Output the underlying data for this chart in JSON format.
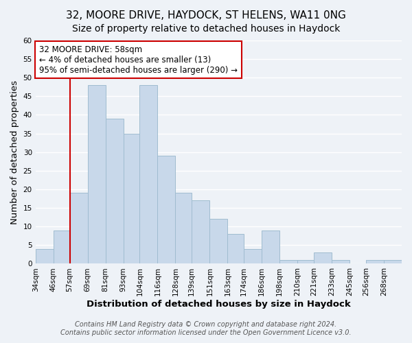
{
  "title": "32, MOORE DRIVE, HAYDOCK, ST HELENS, WA11 0NG",
  "subtitle": "Size of property relative to detached houses in Haydock",
  "xlabel": "Distribution of detached houses by size in Haydock",
  "ylabel": "Number of detached properties",
  "bar_color": "#c8d8ea",
  "bar_edge_color": "#a0bcd0",
  "bin_labels": [
    "34sqm",
    "46sqm",
    "57sqm",
    "69sqm",
    "81sqm",
    "93sqm",
    "104sqm",
    "116sqm",
    "128sqm",
    "139sqm",
    "151sqm",
    "163sqm",
    "174sqm",
    "186sqm",
    "198sqm",
    "210sqm",
    "221sqm",
    "233sqm",
    "245sqm",
    "256sqm",
    "268sqm"
  ],
  "bin_edges": [
    34,
    46,
    57,
    69,
    81,
    93,
    104,
    116,
    128,
    139,
    151,
    163,
    174,
    186,
    198,
    210,
    221,
    233,
    245,
    256,
    268,
    280
  ],
  "counts": [
    4,
    9,
    19,
    48,
    39,
    35,
    48,
    29,
    19,
    17,
    12,
    8,
    4,
    9,
    1,
    1,
    3,
    1,
    0,
    1,
    1
  ],
  "marker_bin_index": 2,
  "ylim": [
    0,
    60
  ],
  "yticks": [
    0,
    5,
    10,
    15,
    20,
    25,
    30,
    35,
    40,
    45,
    50,
    55,
    60
  ],
  "annotation_title": "32 MOORE DRIVE: 58sqm",
  "annotation_line1": "← 4% of detached houses are smaller (13)",
  "annotation_line2": "95% of semi-detached houses are larger (290) →",
  "annotation_box_color": "#ffffff",
  "annotation_box_edge_color": "#cc0000",
  "marker_line_color": "#cc0000",
  "footer1": "Contains HM Land Registry data © Crown copyright and database right 2024.",
  "footer2": "Contains public sector information licensed under the Open Government Licence v3.0.",
  "background_color": "#eef2f7",
  "grid_color": "#ffffff",
  "title_fontsize": 11,
  "subtitle_fontsize": 10,
  "axis_label_fontsize": 9.5,
  "tick_fontsize": 7.5,
  "annotation_fontsize": 8.5,
  "footer_fontsize": 7
}
